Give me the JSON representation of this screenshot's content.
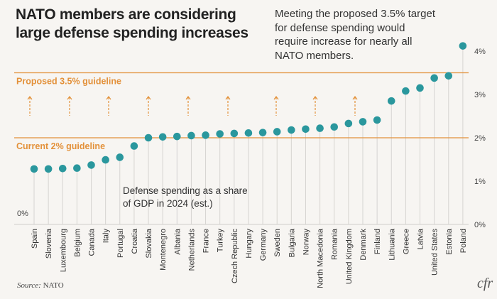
{
  "title": "NATO members are considering large defense spending increases",
  "annotation": "Meeting the proposed 3.5% target for defense spending would require increase for nearly all NATO members.",
  "source_label": "Source:",
  "source_value": "NATO",
  "logo": "cfr",
  "colors": {
    "dot": "#2a979d",
    "guideline": "#e3913a",
    "stem": "#d6d4d1",
    "background": "#f7f5f2"
  },
  "chart_data": {
    "type": "lollipop",
    "categories": [
      "Spain",
      "Slovenia",
      "Luxembourg",
      "Belgium",
      "Canada",
      "Italy",
      "Portugal",
      "Croatia",
      "Slovakia",
      "Montenegro",
      "Albania",
      "Netherlands",
      "France",
      "Turkey",
      "Czech Republic",
      "Hungary",
      "Germany",
      "Sweden",
      "Bulgaria",
      "Norway",
      "North Macedonia",
      "Romania",
      "United Kingdom",
      "Denmark",
      "Finland",
      "Lithuania",
      "Greece",
      "Latvia",
      "United States",
      "Estonia",
      "Poland"
    ],
    "values": [
      1.28,
      1.28,
      1.29,
      1.3,
      1.37,
      1.49,
      1.55,
      1.81,
      2.0,
      2.02,
      2.03,
      2.05,
      2.06,
      2.09,
      2.1,
      2.11,
      2.12,
      2.14,
      2.18,
      2.2,
      2.22,
      2.25,
      2.33,
      2.37,
      2.41,
      2.85,
      3.08,
      3.15,
      3.38,
      3.43,
      4.12
    ],
    "unit": "% of GDP",
    "series_label": "Defense spending as a share of GDP in 2024 (est.)",
    "ylim": [
      0,
      4.2
    ],
    "yticks": [
      "0%",
      "1%",
      "2%",
      "3%",
      "4%"
    ],
    "left_zero_label": "0%",
    "reference_lines": [
      {
        "value": 3.5,
        "label": "Proposed 3.5% guideline"
      },
      {
        "value": 2.0,
        "label": "Current 2% guideline"
      }
    ],
    "increase_arrows": 9
  }
}
